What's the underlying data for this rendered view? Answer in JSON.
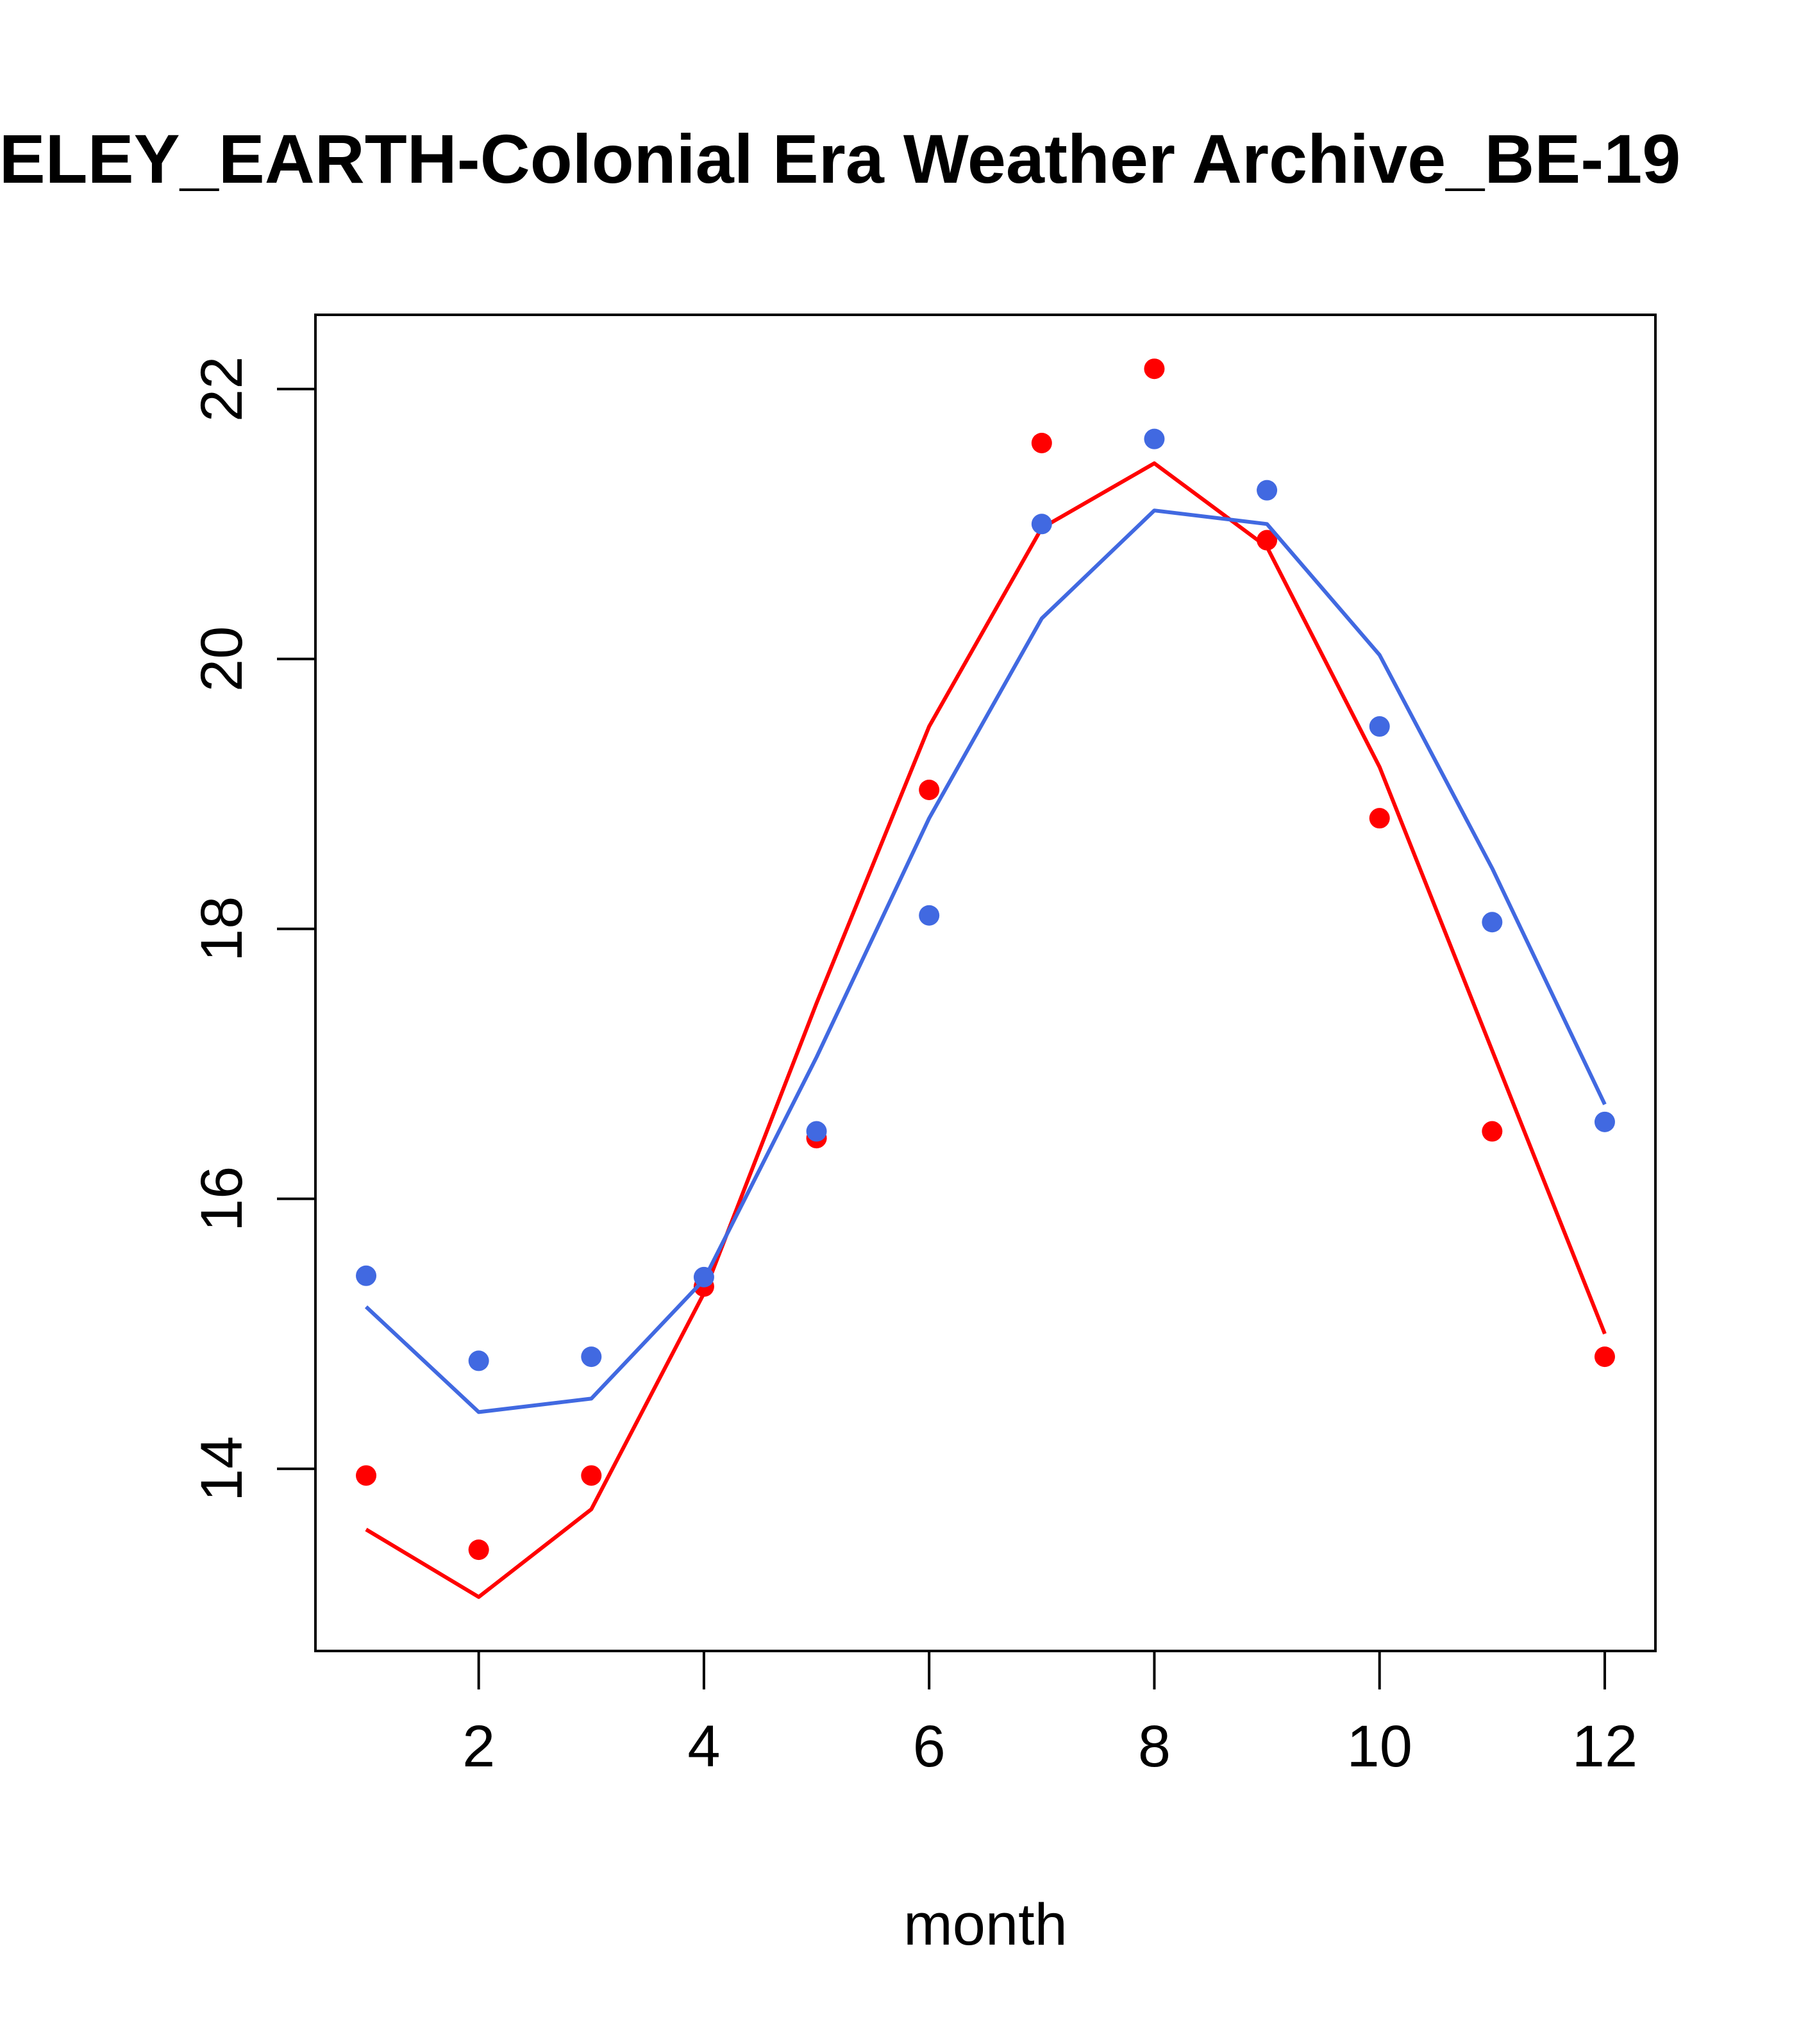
{
  "chart_data": {
    "type": "line",
    "title": "ELEY_EARTH-Colonial Era Weather Archive_BE-19",
    "xlabel": "month",
    "ylabel": "",
    "xlim": [
      0.55,
      12.45
    ],
    "ylim": [
      12.65,
      22.55
    ],
    "x_ticks": [
      2,
      4,
      6,
      8,
      10,
      12
    ],
    "y_ticks": [
      14,
      16,
      18,
      20,
      22
    ],
    "grid": false,
    "legend": "none",
    "x": [
      1,
      2,
      3,
      4,
      5,
      6,
      7,
      8,
      9,
      10,
      11,
      12
    ],
    "series": [
      {
        "color": "#ff0000",
        "points": [
          13.95,
          13.4,
          13.95,
          15.35,
          16.45,
          19.03,
          21.6,
          22.15,
          20.88,
          18.82,
          16.5,
          14.83
        ],
        "line": [
          13.55,
          13.05,
          13.7,
          15.3,
          17.45,
          19.5,
          20.97,
          21.45,
          20.83,
          19.2,
          17.1,
          15.0
        ]
      },
      {
        "color": "#4169e1",
        "points": [
          15.43,
          14.8,
          14.83,
          15.42,
          16.5,
          18.1,
          21.0,
          21.63,
          21.25,
          19.5,
          18.05,
          16.57
        ],
        "line": [
          15.2,
          14.42,
          14.52,
          15.4,
          17.05,
          18.82,
          20.3,
          21.1,
          21.0,
          20.03,
          18.45,
          16.7
        ]
      }
    ]
  }
}
